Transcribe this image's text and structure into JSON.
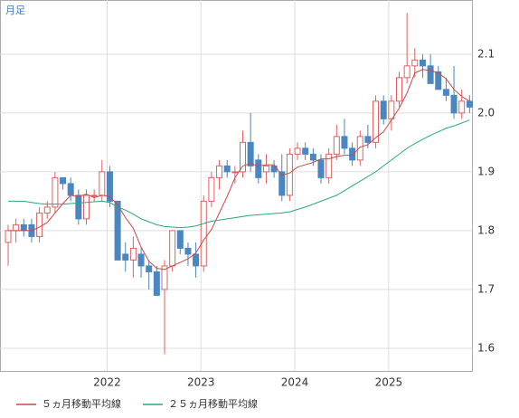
{
  "chart_data": {
    "type": "candlestick",
    "period_label": "月足",
    "categories": [
      null,
      null,
      null,
      null,
      null,
      null,
      null,
      null,
      null,
      null,
      null,
      null,
      null,
      "2022",
      null,
      null,
      null,
      null,
      null,
      null,
      null,
      null,
      null,
      null,
      null,
      "2023",
      null,
      null,
      null,
      null,
      null,
      null,
      null,
      null,
      null,
      null,
      null,
      "2024",
      null,
      null,
      null,
      null,
      null,
      null,
      null,
      null,
      null,
      null,
      null,
      "2025",
      null,
      null,
      null,
      null,
      null,
      null,
      null,
      null,
      null,
      null
    ],
    "open": [
      1.78,
      1.8,
      1.81,
      1.81,
      1.79,
      1.83,
      1.84,
      1.89,
      1.88,
      1.86,
      1.82,
      1.86,
      1.86,
      1.9,
      1.85,
      1.76,
      1.75,
      1.76,
      1.74,
      1.73,
      1.7,
      1.74,
      1.8,
      1.77,
      1.76,
      1.74,
      1.85,
      1.89,
      1.91,
      1.9,
      1.9,
      1.95,
      1.92,
      1.9,
      1.91,
      1.9,
      1.86,
      1.93,
      1.94,
      1.93,
      1.92,
      1.89,
      1.93,
      1.96,
      1.94,
      1.92,
      1.96,
      1.95,
      2.02,
      1.99,
      2.02,
      2.06,
      2.08,
      2.09,
      2.08,
      2.07,
      2.04,
      2.03,
      2.0,
      2.02
    ],
    "high": [
      1.81,
      1.82,
      1.82,
      1.82,
      1.84,
      1.85,
      1.9,
      1.89,
      1.89,
      1.87,
      1.87,
      1.87,
      1.92,
      1.91,
      1.85,
      1.78,
      1.79,
      1.77,
      1.75,
      1.74,
      1.75,
      1.8,
      1.8,
      1.78,
      1.78,
      1.86,
      1.9,
      1.92,
      1.92,
      1.91,
      1.97,
      2.0,
      1.93,
      1.93,
      1.92,
      1.93,
      1.94,
      1.95,
      1.95,
      1.94,
      1.93,
      1.94,
      1.98,
      1.99,
      1.95,
      1.97,
      1.98,
      2.03,
      2.03,
      2.03,
      2.07,
      2.17,
      2.11,
      2.1,
      2.1,
      2.08,
      2.06,
      2.08,
      2.04,
      2.03
    ],
    "low": [
      1.74,
      1.78,
      1.79,
      1.78,
      1.78,
      1.82,
      1.83,
      1.87,
      1.85,
      1.81,
      1.81,
      1.85,
      1.85,
      1.84,
      1.75,
      1.73,
      1.72,
      1.72,
      1.7,
      1.69,
      1.59,
      1.73,
      1.76,
      1.74,
      1.72,
      1.73,
      1.84,
      1.87,
      1.89,
      1.88,
      1.89,
      1.9,
      1.88,
      1.88,
      1.89,
      1.85,
      1.85,
      1.92,
      1.92,
      1.91,
      1.88,
      1.88,
      1.92,
      1.93,
      1.91,
      1.91,
      1.94,
      1.94,
      1.98,
      1.97,
      2.01,
      2.05,
      2.06,
      2.06,
      2.05,
      2.04,
      2.02,
      1.99,
      1.99,
      2.0
    ],
    "close": [
      1.8,
      1.81,
      1.8,
      1.79,
      1.83,
      1.84,
      1.89,
      1.88,
      1.86,
      1.82,
      1.86,
      1.86,
      1.9,
      1.85,
      1.75,
      1.75,
      1.77,
      1.74,
      1.73,
      1.69,
      1.74,
      1.8,
      1.77,
      1.76,
      1.74,
      1.85,
      1.89,
      1.91,
      1.9,
      1.9,
      1.95,
      1.91,
      1.89,
      1.91,
      1.9,
      1.86,
      1.93,
      1.94,
      1.93,
      1.92,
      1.89,
      1.93,
      1.96,
      1.94,
      1.92,
      1.96,
      1.95,
      2.02,
      1.99,
      2.02,
      2.06,
      2.08,
      2.09,
      2.08,
      2.05,
      2.04,
      2.03,
      2.0,
      2.02,
      2.01
    ],
    "up_color": "#e06060",
    "down_color": "#4a86c0",
    "series": [
      {
        "name": "５ヵ月移動平均線",
        "color": "#c84a48",
        "values": [
          1.8,
          1.8,
          1.8,
          1.8,
          1.806,
          1.814,
          1.83,
          1.846,
          1.86,
          1.858,
          1.862,
          1.856,
          1.86,
          1.858,
          1.844,
          1.822,
          1.804,
          1.772,
          1.748,
          1.736,
          1.734,
          1.74,
          1.746,
          1.752,
          1.762,
          1.784,
          1.802,
          1.83,
          1.858,
          1.89,
          1.91,
          1.914,
          1.91,
          1.912,
          1.912,
          1.894,
          1.898,
          1.908,
          1.912,
          1.916,
          1.922,
          1.922,
          1.926,
          1.928,
          1.928,
          1.942,
          1.946,
          1.958,
          1.968,
          1.988,
          2.008,
          2.034,
          2.068,
          2.074,
          2.072,
          2.068,
          2.058,
          2.04,
          2.028,
          2.02
        ]
      },
      {
        "name": "２５ヵ月移動平均線",
        "color": "#2aa878",
        "values": [
          1.85,
          1.85,
          1.85,
          1.848,
          1.846,
          1.845,
          1.845,
          1.845,
          1.846,
          1.847,
          1.848,
          1.849,
          1.85,
          1.848,
          1.84,
          1.835,
          1.828,
          1.82,
          1.815,
          1.81,
          1.807,
          1.806,
          1.805,
          1.806,
          1.808,
          1.812,
          1.816,
          1.818,
          1.82,
          1.822,
          1.824,
          1.826,
          1.827,
          1.828,
          1.829,
          1.83,
          1.832,
          1.836,
          1.84,
          1.845,
          1.85,
          1.855,
          1.86,
          1.868,
          1.876,
          1.884,
          1.892,
          1.9,
          1.91,
          1.92,
          1.93,
          1.94,
          1.948,
          1.955,
          1.962,
          1.968,
          1.974,
          1.978,
          1.983,
          1.988
        ]
      }
    ],
    "ylim": [
      1.5615,
      2.192
    ],
    "yticks": [
      1.6,
      1.7,
      1.8,
      1.9,
      {
        "value": 2.0,
        "label": "2.0"
      },
      2.1
    ],
    "grid": true
  }
}
